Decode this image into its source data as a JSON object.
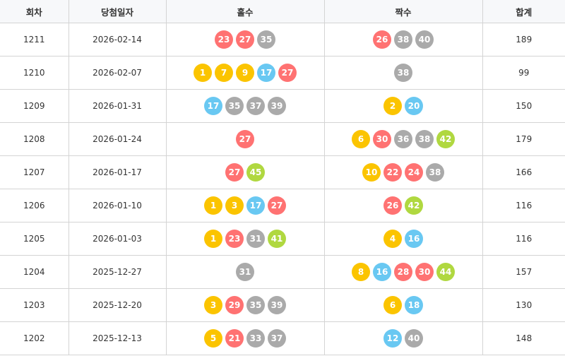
{
  "headers": [
    "회차",
    "당첨일자",
    "홀수",
    "짝수",
    "합계"
  ],
  "ball_colors": {
    "1-10": "#fbc400",
    "11-20": "#69c8f2",
    "21-30": "#ff7272",
    "31-40": "#aaaaaa",
    "41-45": "#b0d840"
  },
  "rows": [
    {
      "round": "1211",
      "date": "2026-02-14",
      "odd": [
        23,
        27,
        35
      ],
      "even": [
        26,
        38,
        40
      ],
      "sum": "189"
    },
    {
      "round": "1210",
      "date": "2026-02-07",
      "odd": [
        1,
        7,
        9,
        17,
        27
      ],
      "even": [
        38
      ],
      "sum": "99"
    },
    {
      "round": "1209",
      "date": "2026-01-31",
      "odd": [
        17,
        35,
        37,
        39
      ],
      "even": [
        2,
        20
      ],
      "sum": "150"
    },
    {
      "round": "1208",
      "date": "2026-01-24",
      "odd": [
        27
      ],
      "even": [
        6,
        30,
        36,
        38,
        42
      ],
      "sum": "179"
    },
    {
      "round": "1207",
      "date": "2026-01-17",
      "odd": [
        27,
        45
      ],
      "even": [
        10,
        22,
        24,
        38
      ],
      "sum": "166"
    },
    {
      "round": "1206",
      "date": "2026-01-10",
      "odd": [
        1,
        3,
        17,
        27
      ],
      "even": [
        26,
        42
      ],
      "sum": "116"
    },
    {
      "round": "1205",
      "date": "2026-01-03",
      "odd": [
        1,
        23,
        31,
        41
      ],
      "even": [
        4,
        16
      ],
      "sum": "116"
    },
    {
      "round": "1204",
      "date": "2025-12-27",
      "odd": [
        31
      ],
      "even": [
        8,
        16,
        28,
        30,
        44
      ],
      "sum": "157"
    },
    {
      "round": "1203",
      "date": "2025-12-20",
      "odd": [
        3,
        29,
        35,
        39
      ],
      "even": [
        6,
        18
      ],
      "sum": "130"
    },
    {
      "round": "1202",
      "date": "2025-12-13",
      "odd": [
        5,
        21,
        33,
        37
      ],
      "even": [
        12,
        40
      ],
      "sum": "148"
    }
  ]
}
